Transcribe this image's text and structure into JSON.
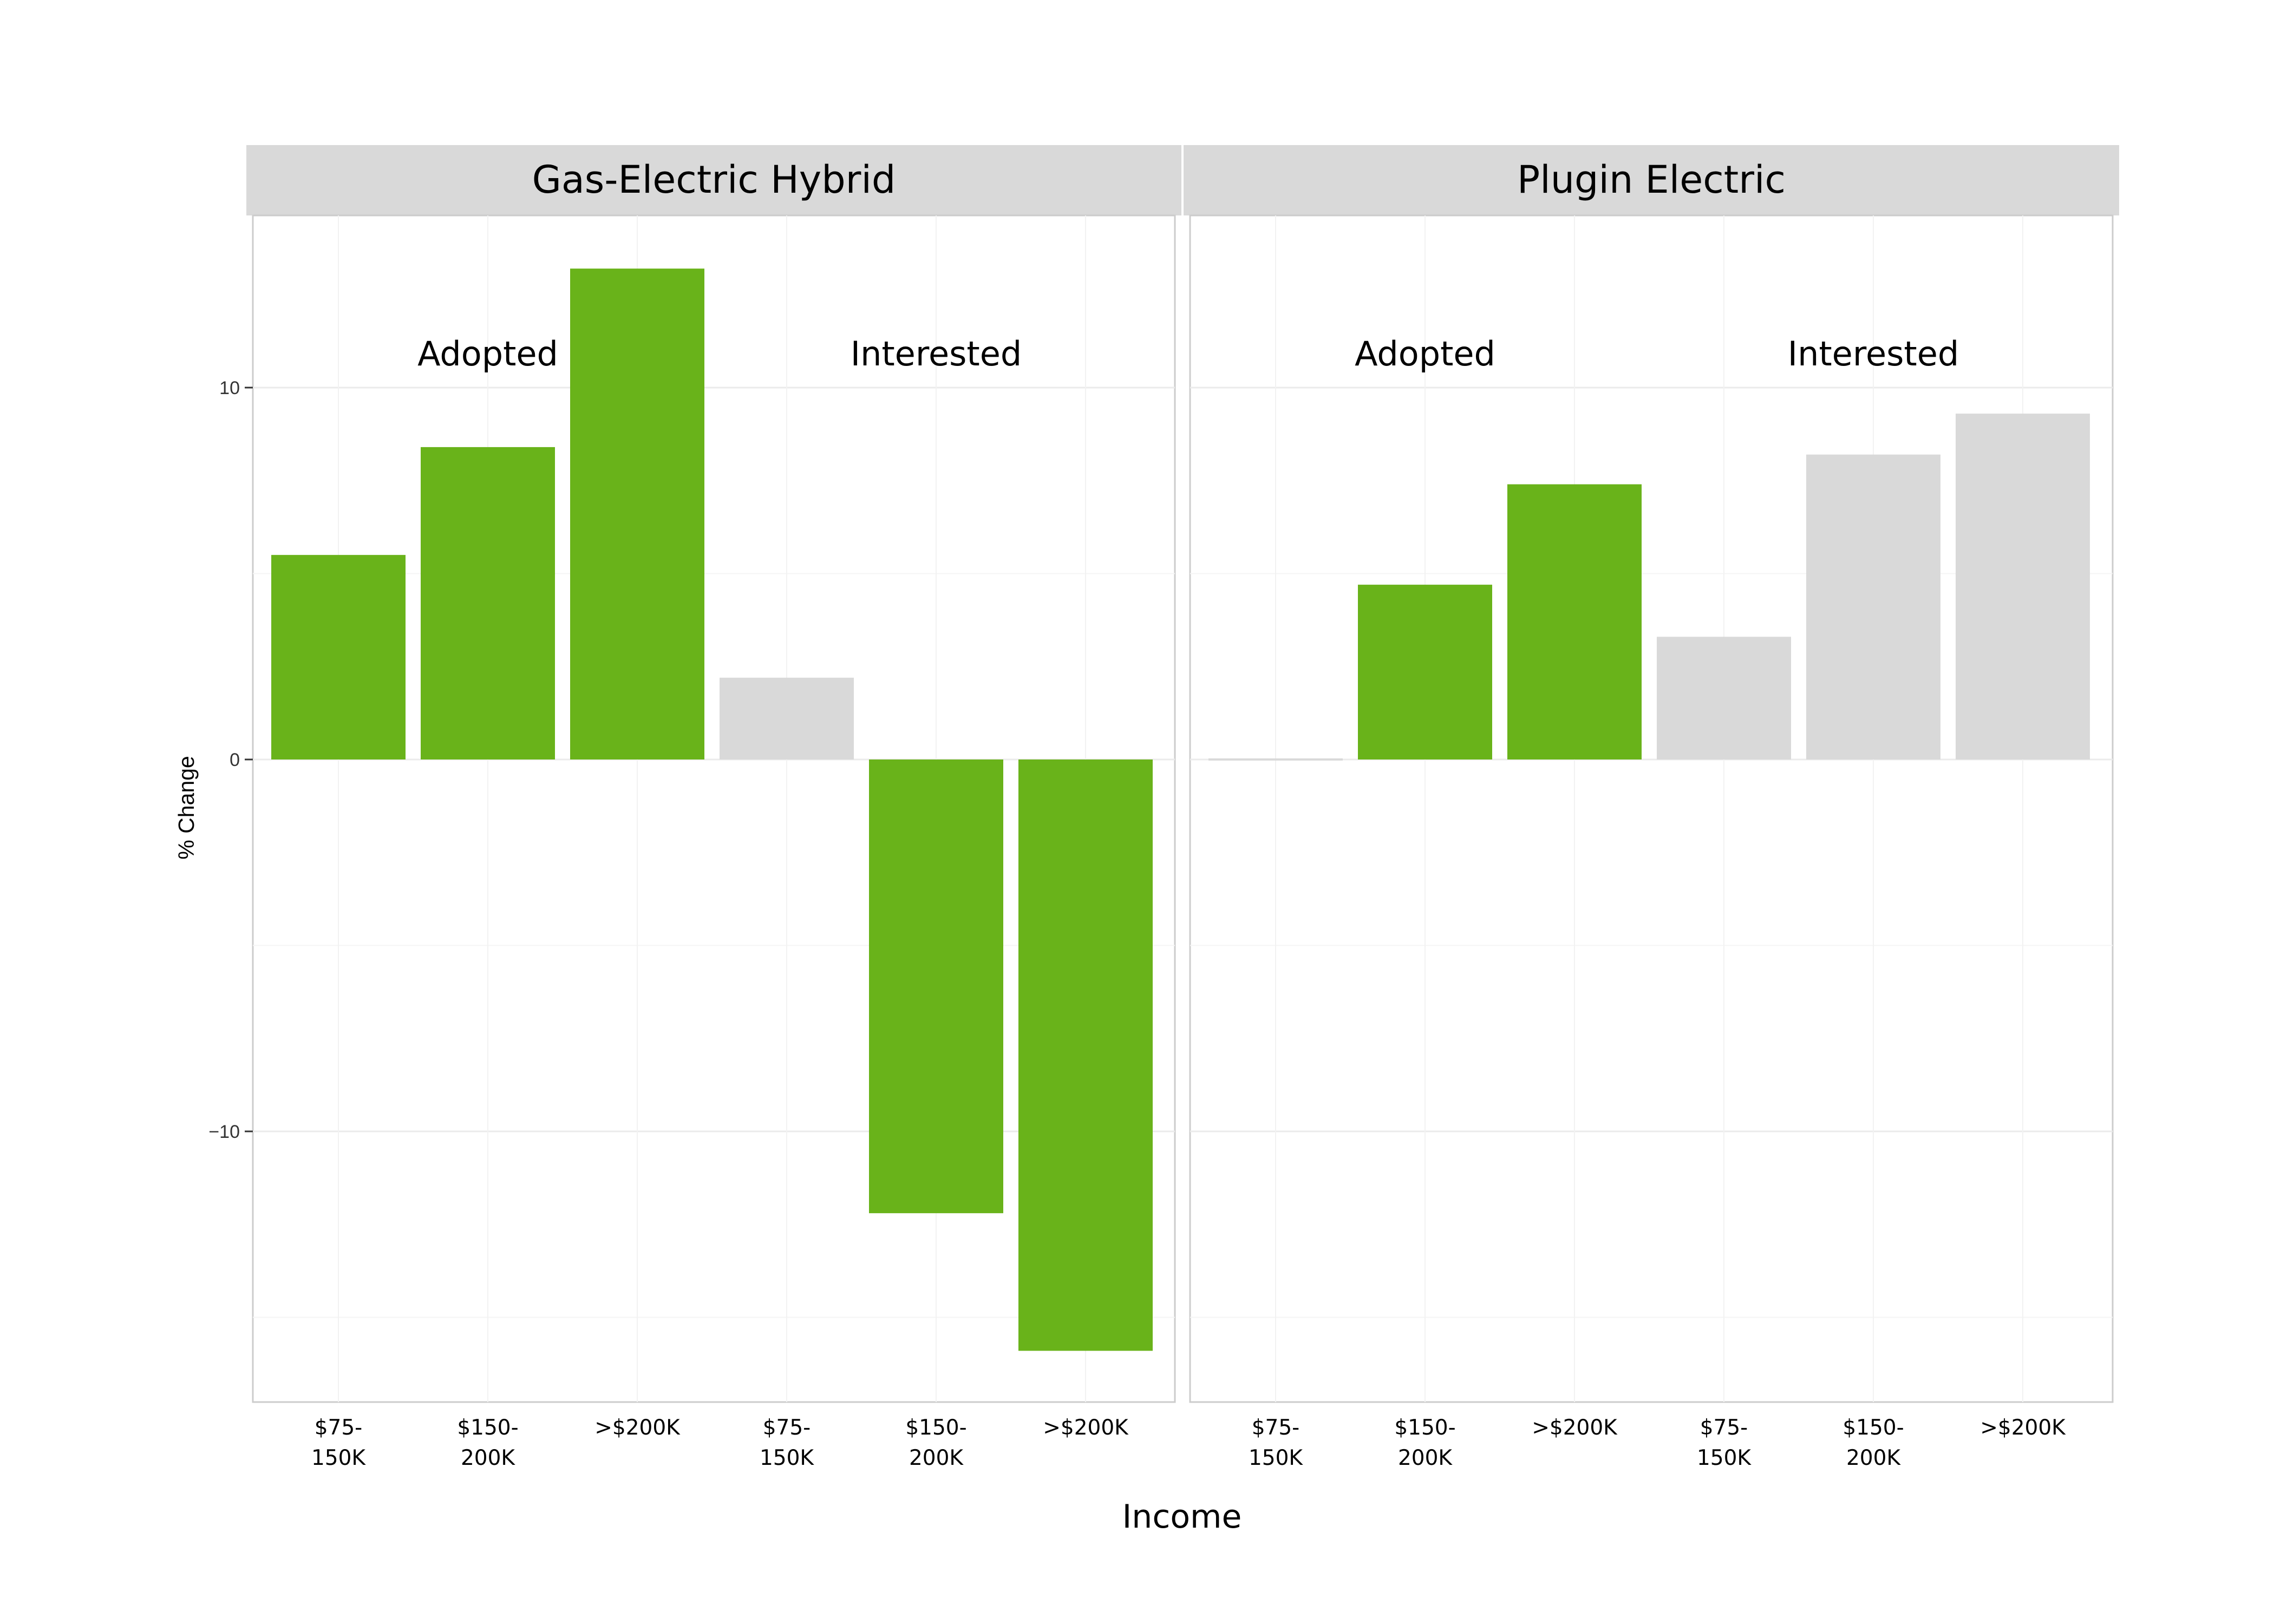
{
  "chart_data": {
    "type": "bar",
    "xlabel": "Income",
    "ylabel": "% Change",
    "ylim": [
      -17,
      14.5
    ],
    "yticks": [
      10,
      0,
      -10
    ],
    "ytick_labels": [
      "10",
      "0",
      "−10"
    ],
    "grid": true,
    "colors": {
      "highlight": "#69b31a",
      "muted": "#d9d9d9"
    },
    "categories": [
      "$75-150K",
      "$150-200K",
      ">$200K",
      "$75-150K",
      "$150-200K",
      ">$200K"
    ],
    "panels": [
      {
        "title": "Gas-Electric Hybrid",
        "groups": [
          "Adopted",
          "Interested"
        ],
        "tick_labels": [
          [
            "$75-",
            "150K"
          ],
          [
            "$150-",
            "200K"
          ],
          [
            ">$200K"
          ],
          [
            "$75-",
            "150K"
          ],
          [
            "$150-",
            "200K"
          ],
          [
            ">$200K"
          ]
        ],
        "bars": [
          {
            "group": "Adopted",
            "category": "$75-150K",
            "value": 5.5,
            "color": "#69b31a"
          },
          {
            "group": "Adopted",
            "category": "$150-200K",
            "value": 8.4,
            "color": "#69b31a"
          },
          {
            "group": "Adopted",
            "category": ">$200K",
            "value": 13.2,
            "color": "#69b31a"
          },
          {
            "group": "Interested",
            "category": "$75-150K",
            "value": 2.2,
            "color": "#d9d9d9"
          },
          {
            "group": "Interested",
            "category": "$150-200K",
            "value": -12.2,
            "color": "#69b31a"
          },
          {
            "group": "Interested",
            "category": ">$200K",
            "value": -15.9,
            "color": "#69b31a"
          }
        ]
      },
      {
        "title": "Plugin Electric",
        "groups": [
          "Adopted",
          "Interested"
        ],
        "tick_labels": [
          [
            "$75-",
            "150K"
          ],
          [
            "$150-",
            "200K"
          ],
          [
            ">$200K"
          ],
          [
            "$75-",
            "150K"
          ],
          [
            "$150-",
            "200K"
          ],
          [
            ">$200K"
          ]
        ],
        "bars": [
          {
            "group": "Adopted",
            "category": "$75-150K",
            "value": 0.05,
            "color": "#d9d9d9"
          },
          {
            "group": "Adopted",
            "category": "$150-200K",
            "value": 4.7,
            "color": "#69b31a"
          },
          {
            "group": "Adopted",
            "category": ">$200K",
            "value": 7.4,
            "color": "#69b31a"
          },
          {
            "group": "Interested",
            "category": "$75-150K",
            "value": 3.3,
            "color": "#d9d9d9"
          },
          {
            "group": "Interested",
            "category": "$150-200K",
            "value": 8.2,
            "color": "#d9d9d9"
          },
          {
            "group": "Interested",
            "category": ">$200K",
            "value": 9.3,
            "color": "#d9d9d9"
          }
        ]
      }
    ]
  }
}
